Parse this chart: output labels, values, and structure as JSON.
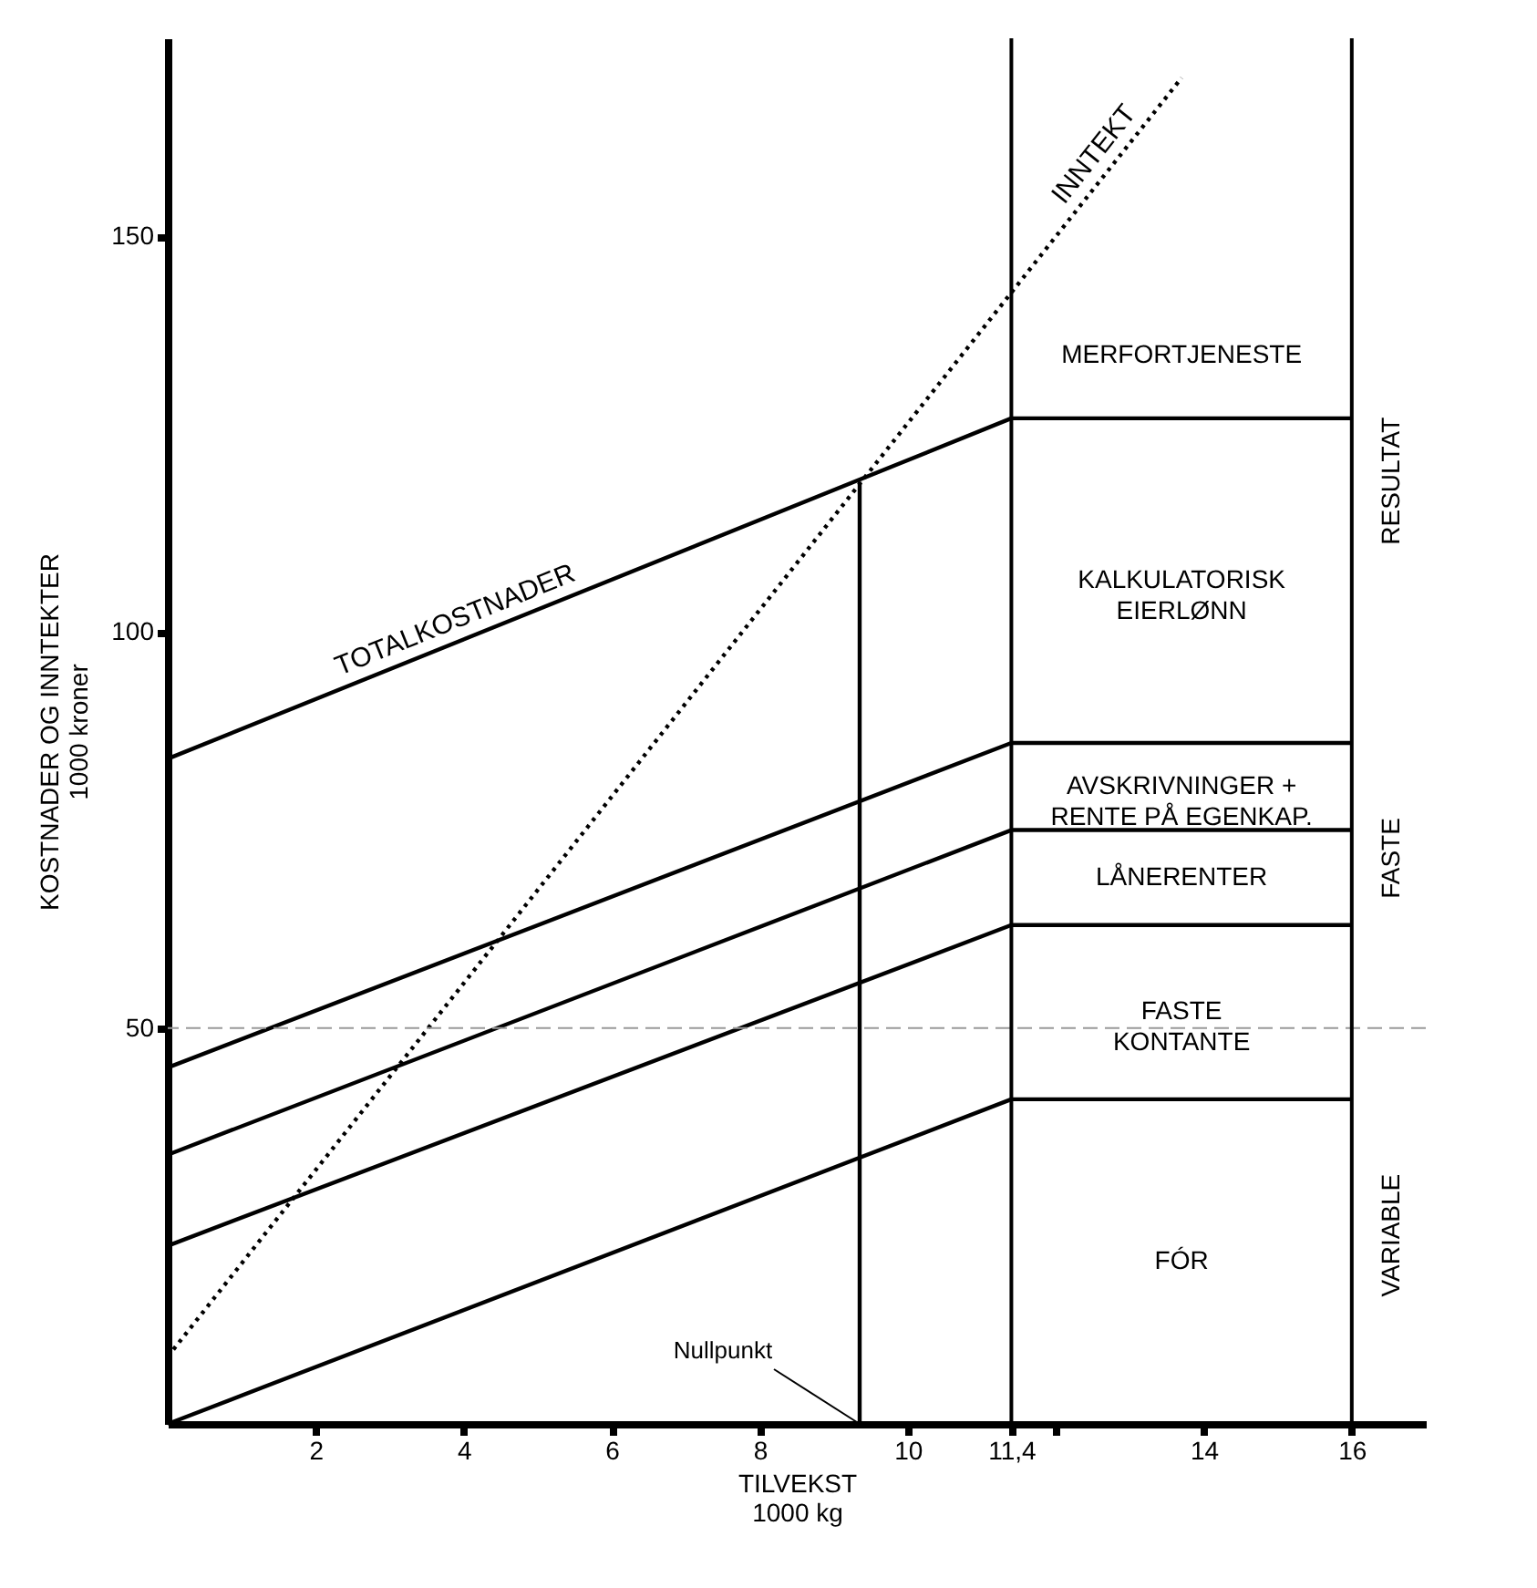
{
  "chart_data": {
    "type": "line",
    "xlabel": "TILVEKST\n1000 kg",
    "ylabel": "KOSTNADER OG INNTEKTER\n1000  kroner",
    "xlim": [
      0,
      17
    ],
    "ylim": [
      0,
      175
    ],
    "xticks": [
      2,
      4,
      6,
      8,
      10,
      {
        "value": 11.4,
        "label": "11,4"
      },
      {
        "value": 12,
        "label": null
      },
      14,
      16
    ],
    "yticks": [
      50,
      100,
      150
    ],
    "series": [
      {
        "color": "#000000",
        "x": [
          0,
          11.4,
          16
        ],
        "values": [
          0,
          41,
          41
        ],
        "line_style": "solid"
      },
      {
        "color": "#000000",
        "x": [
          0,
          11.4,
          16
        ],
        "values": [
          22.5,
          63,
          63
        ],
        "line_style": "solid"
      },
      {
        "color": "#000000",
        "x": [
          0,
          11.4,
          16
        ],
        "values": [
          34,
          75,
          75
        ],
        "line_style": "solid"
      },
      {
        "color": "#000000",
        "x": [
          0,
          11.4,
          16
        ],
        "values": [
          45,
          86,
          86
        ],
        "line_style": "solid"
      },
      {
        "name": "TOTALKOSTNADER",
        "color": "#000000",
        "x": [
          0,
          11.4,
          16
        ],
        "values": [
          84,
          127,
          127
        ],
        "line_style": "solid"
      },
      {
        "name": "INNTEKT",
        "color": "#000000",
        "x": [
          0,
          13.7
        ],
        "values": [
          8.5,
          170
        ],
        "line_style": "dotted"
      },
      {
        "color": "#000000",
        "x": [
          9.35,
          9.35
        ],
        "values": [
          0,
          119
        ],
        "line_style": "solid"
      }
    ],
    "ref_lines": [
      {
        "axis": "y",
        "value": 50,
        "color": "#999999",
        "line_style": "dashed"
      },
      {
        "axis": "x",
        "value": 11.4,
        "color": "#000000",
        "line_style": "solid"
      },
      {
        "axis": "x",
        "value": 16,
        "color": "#000000",
        "line_style": "solid"
      }
    ],
    "grid": false,
    "annotations": [
      "MERFORTJENESTE",
      "KALKULATORISK\nEIERLØNN",
      "AVSKRIVNINGER +\nRENTE PÅ EGENKAP.",
      "LÅNERENTER",
      "FASTE\nKONTANTE",
      "FÓR",
      "RESULTAT",
      "FASTE",
      "VARIABLE",
      {
        "text": "Nullpunkt",
        "x": 9.35,
        "y": 0
      }
    ]
  }
}
